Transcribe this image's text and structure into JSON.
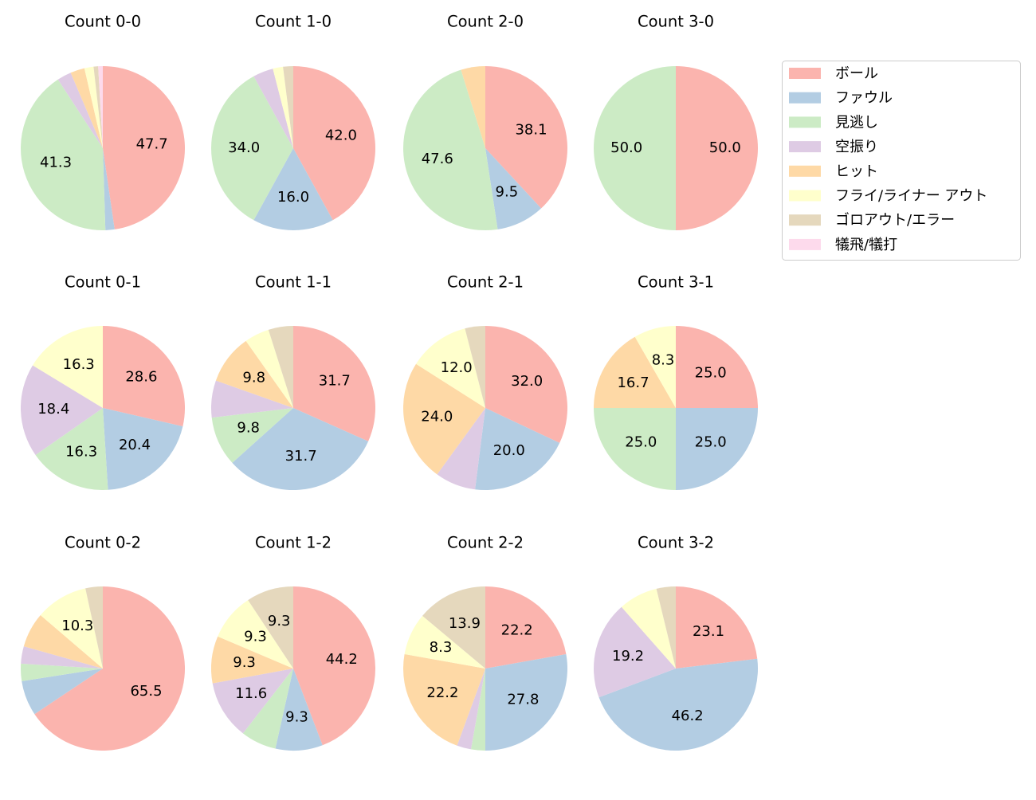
{
  "legend": {
    "names": [
      "ボール",
      "ファウル",
      "見逃し",
      "空振り",
      "ヒット",
      "フライ/ライナー アウト",
      "ゴロアウト/エラー",
      "犠飛/犠打"
    ],
    "colors": [
      "#fbb4ae",
      "#b3cde3",
      "#ccebc5",
      "#decbe4",
      "#fed9a6",
      "#ffffcc",
      "#e5d8bd",
      "#fddaec"
    ]
  },
  "chart_data": [
    {
      "type": "pie",
      "title": "Count 0-0",
      "values": [
        47.7,
        1.8,
        41.3,
        2.8,
        2.8,
        1.8,
        0.9,
        0.9
      ],
      "value_labels": [
        "47.7",
        null,
        "41.3",
        null,
        null,
        null,
        null,
        null
      ]
    },
    {
      "type": "pie",
      "title": "Count 1-0",
      "values": [
        42.0,
        16.0,
        34.0,
        4.0,
        0,
        2.0,
        2.0,
        0
      ],
      "value_labels": [
        "42.0",
        "16.0",
        "34.0",
        null,
        null,
        null,
        null,
        null
      ]
    },
    {
      "type": "pie",
      "title": "Count 2-0",
      "values": [
        38.1,
        9.5,
        47.6,
        0,
        4.8,
        0,
        0,
        0
      ],
      "value_labels": [
        "38.1",
        "9.5",
        "47.6",
        null,
        null,
        null,
        null,
        null
      ]
    },
    {
      "type": "pie",
      "title": "Count 3-0",
      "values": [
        50.0,
        0,
        50.0,
        0,
        0,
        0,
        0,
        0
      ],
      "value_labels": [
        "50.0",
        null,
        "50.0",
        null,
        null,
        null,
        null,
        null
      ]
    },
    {
      "type": "pie",
      "title": "Count 0-1",
      "values": [
        28.6,
        20.4,
        16.3,
        18.4,
        0,
        16.3,
        0,
        0
      ],
      "value_labels": [
        "28.6",
        "20.4",
        "16.3",
        "18.4",
        null,
        "16.3",
        null,
        null
      ]
    },
    {
      "type": "pie",
      "title": "Count 1-1",
      "values": [
        31.7,
        31.7,
        9.8,
        7.3,
        9.8,
        4.9,
        4.9,
        0
      ],
      "value_labels": [
        "31.7",
        "31.7",
        "9.8",
        null,
        "9.8",
        null,
        null,
        null
      ]
    },
    {
      "type": "pie",
      "title": "Count 2-1",
      "values": [
        32.0,
        20.0,
        0,
        8.0,
        24.0,
        12.0,
        4.0,
        0
      ],
      "value_labels": [
        "32.0",
        "20.0",
        null,
        null,
        "24.0",
        "12.0",
        null,
        null
      ]
    },
    {
      "type": "pie",
      "title": "Count 3-1",
      "values": [
        25.0,
        25.0,
        25.0,
        0,
        16.7,
        8.3,
        0,
        0
      ],
      "value_labels": [
        "25.0",
        "25.0",
        "25.0",
        null,
        "16.7",
        "8.3",
        null,
        null
      ]
    },
    {
      "type": "pie",
      "title": "Count 0-2",
      "values": [
        65.5,
        6.9,
        3.4,
        3.4,
        6.9,
        10.3,
        3.4,
        0
      ],
      "value_labels": [
        "65.5",
        null,
        null,
        null,
        null,
        "10.3",
        null,
        null
      ]
    },
    {
      "type": "pie",
      "title": "Count 1-2",
      "values": [
        44.2,
        9.3,
        7.0,
        11.6,
        9.3,
        9.3,
        9.3,
        0
      ],
      "value_labels": [
        "44.2",
        "9.3",
        null,
        "11.6",
        "9.3",
        "9.3",
        "9.3",
        null
      ]
    },
    {
      "type": "pie",
      "title": "Count 2-2",
      "values": [
        22.2,
        27.8,
        2.8,
        2.8,
        22.2,
        8.3,
        13.9,
        0
      ],
      "value_labels": [
        "22.2",
        "27.8",
        null,
        null,
        "22.2",
        "8.3",
        "13.9",
        null
      ]
    },
    {
      "type": "pie",
      "title": "Count 3-2",
      "values": [
        23.1,
        46.2,
        0,
        19.2,
        0,
        7.7,
        3.8,
        0
      ],
      "value_labels": [
        "23.1",
        "46.2",
        null,
        "19.2",
        null,
        null,
        null,
        null
      ]
    }
  ]
}
